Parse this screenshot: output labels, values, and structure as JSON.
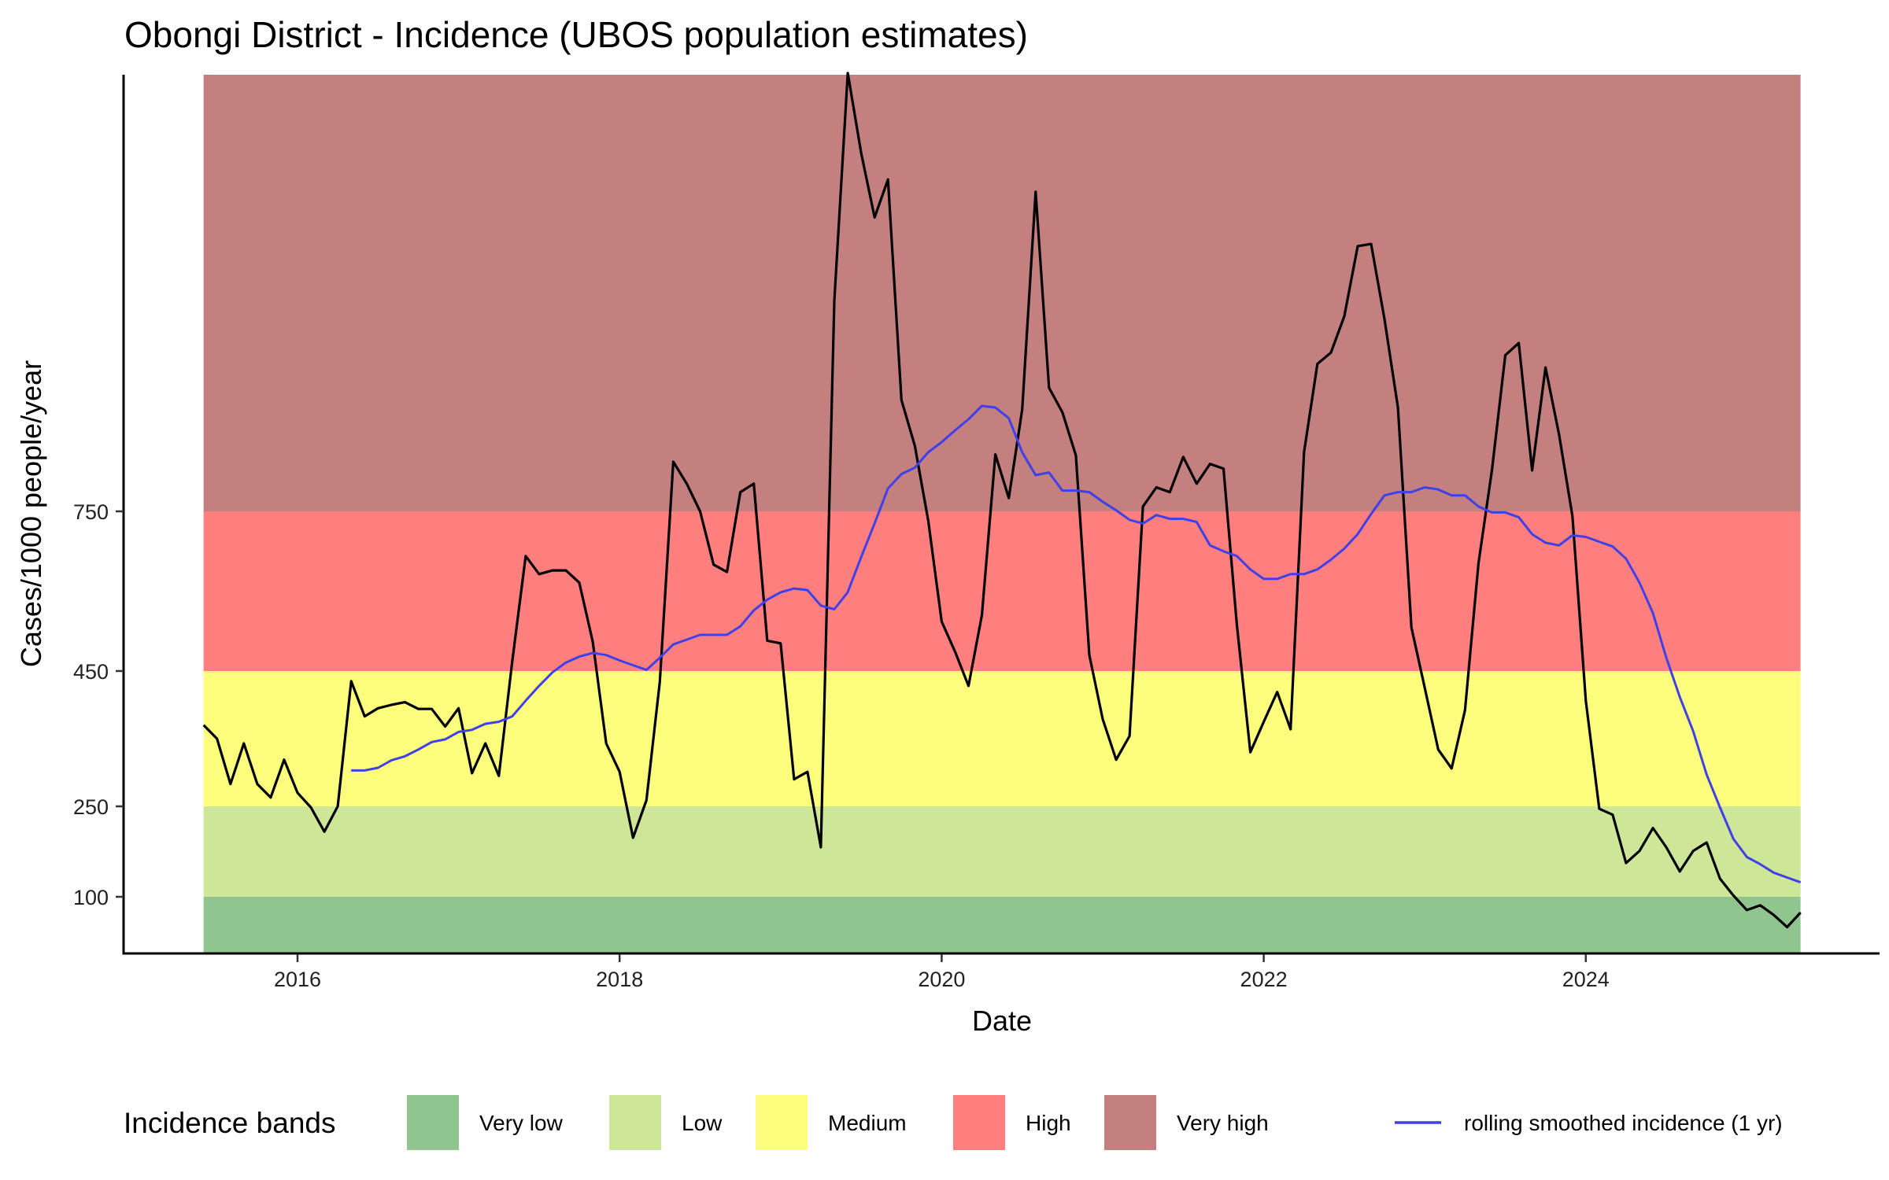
{
  "chart_data": {
    "type": "line",
    "title": "Obongi District - Incidence (UBOS population estimates)",
    "xlabel": "Date",
    "ylabel": "Cases/1000 people/year",
    "x_ticks": [
      "2016",
      "2018",
      "2020",
      "2022",
      "2024"
    ],
    "x_tick_values": [
      2016,
      2018,
      2020,
      2022,
      2024
    ],
    "y_ticks": [
      "100",
      "250",
      "450",
      "750"
    ],
    "y_tick_values": [
      100,
      250,
      450,
      750
    ],
    "grid": false,
    "legend_placement": "bottom",
    "bands": [
      {
        "name": "Very low",
        "from": 0,
        "to": 100,
        "color": "#90c58f"
      },
      {
        "name": "Low",
        "from": 100,
        "to": 250,
        "color": "#cde697"
      },
      {
        "name": "Medium",
        "from": 250,
        "to": 450,
        "color": "#fdfd7d"
      },
      {
        "name": "High",
        "from": 450,
        "to": 750,
        "color": "#ff7f7f"
      },
      {
        "name": "Very high",
        "from": 750,
        "to": 1573,
        "color": "#c47f7f"
      }
    ],
    "series": [
      {
        "name": "monthly incidence",
        "color": "#000000",
        "start": "2015-06",
        "frequency": "monthly",
        "values": [
          370,
          350,
          283,
          343,
          283,
          263,
          319,
          270,
          248,
          208,
          250,
          435,
          383,
          395,
          400,
          404,
          394,
          394,
          368,
          395,
          299,
          343,
          295,
          468,
          666,
          632,
          639,
          639,
          616,
          505,
          343,
          301,
          198,
          259,
          434,
          843,
          802,
          750,
          650,
          636,
          786,
          802,
          507,
          502,
          290,
          301,
          182,
          1145,
          1573,
          1423,
          1302,
          1373,
          959,
          873,
          732,
          543,
          486,
          428,
          555,
          857,
          775,
          941,
          1350,
          982,
          936,
          855,
          480,
          379,
          319,
          354,
          759,
          795,
          786,
          852,
          802,
          839,
          830,
          536,
          330,
          375,
          419,
          364,
          861,
          1027,
          1048,
          1116,
          1248,
          1252,
          1111,
          945,
          532,
          425,
          334,
          306,
          392,
          652,
          827,
          1043,
          1066,
          827,
          1020,
          895,
          741,
          406,
          246,
          236,
          156,
          176,
          214,
          182,
          142,
          176,
          190,
          130,
          102,
          78,
          86,
          70,
          50,
          74
        ]
      },
      {
        "name": "rolling smoothed incidence (1 yr)",
        "color": "#4040e8",
        "start": "2016-05",
        "frequency": "monthly",
        "values": [
          303,
          303,
          307,
          318,
          324,
          334,
          345,
          349,
          360,
          363,
          372,
          375,
          383,
          406,
          428,
          448,
          466,
          477,
          484,
          480,
          470,
          461,
          452,
          475,
          500,
          509,
          518,
          518,
          518,
          534,
          564,
          584,
          598,
          605,
          602,
          573,
          566,
          598,
          664,
          727,
          793,
          820,
          832,
          861,
          880,
          902,
          923,
          948,
          945,
          925,
          861,
          818,
          823,
          789,
          789,
          786,
          768,
          752,
          734,
          727,
          743,
          736,
          736,
          730,
          686,
          675,
          666,
          641,
          623,
          623,
          632,
          632,
          641,
          659,
          680,
          707,
          745,
          780,
          786,
          786,
          795,
          791,
          780,
          780,
          759,
          748,
          748,
          739,
          707,
          691,
          686,
          705,
          702,
          693,
          684,
          661,
          616,
          559,
          475,
          412,
          361,
          297,
          248,
          196,
          166,
          154,
          140,
          132,
          124
        ]
      }
    ],
    "legend": {
      "title": "Incidence bands",
      "band_labels": [
        "Very low",
        "Low",
        "Medium",
        "High",
        "Very high"
      ],
      "line_label": "rolling smoothed incidence (1 yr)"
    }
  }
}
